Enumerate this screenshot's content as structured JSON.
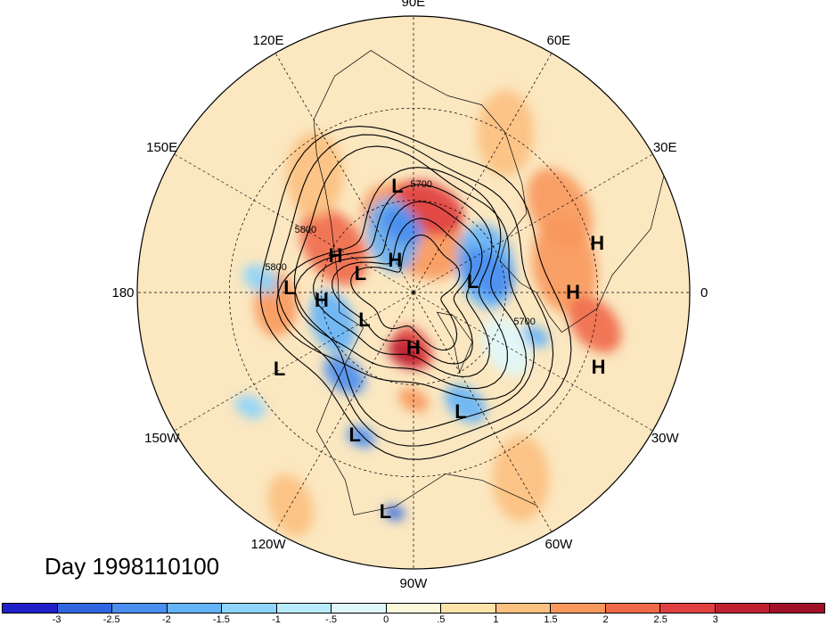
{
  "title": "Day 1998110100",
  "longitude_labels": [
    "90E",
    "60E",
    "30E",
    "0",
    "30W",
    "60W",
    "90W",
    "120W",
    "150W",
    "180",
    "150E",
    "120E"
  ],
  "contour_labels": [
    "5700",
    "5800",
    "5800",
    "5700"
  ],
  "pressure_centers": [
    {
      "label": "L",
      "lon": 98,
      "lat": 55
    },
    {
      "label": "H",
      "lon": 155,
      "lat": 62
    },
    {
      "label": "L",
      "lon": 178,
      "lat": 50
    },
    {
      "label": "H",
      "lon": 185,
      "lat": 60
    },
    {
      "label": "L",
      "lon": 210,
      "lat": 40
    },
    {
      "label": "L",
      "lon": 248,
      "lat": 40
    },
    {
      "label": "L",
      "lon": 263,
      "lat": 18
    },
    {
      "label": "L",
      "lon": 292,
      "lat": 48
    },
    {
      "label": "H",
      "lon": 0,
      "lat": 38
    },
    {
      "label": "H",
      "lon": 15,
      "lat": 28
    },
    {
      "label": "H",
      "lon": 338,
      "lat": 25
    },
    {
      "label": "H",
      "lon": 270,
      "lat": 72
    },
    {
      "label": "L",
      "lon": 210,
      "lat": 72
    },
    {
      "label": "L",
      "lon": 160,
      "lat": 72
    },
    {
      "label": "L",
      "lon": 10,
      "lat": 70
    },
    {
      "label": "H",
      "lon": 120,
      "lat": 78
    }
  ],
  "colorbar": {
    "colors": [
      "#2020c8",
      "#3266e0",
      "#4a8ef0",
      "#64b4f8",
      "#8ed4fc",
      "#b8ecfc",
      "#e0f8fc",
      "#fcf8dc",
      "#fce4a8",
      "#fcc080",
      "#f8985c",
      "#f06a4a",
      "#e04040",
      "#c02030",
      "#a01028"
    ],
    "labels": [
      "-3",
      "-2.5",
      "-2",
      "-1.5",
      "-1",
      "-.5",
      "0",
      ".5",
      "1",
      "1.5",
      "2",
      "2.5",
      "3"
    ]
  }
}
